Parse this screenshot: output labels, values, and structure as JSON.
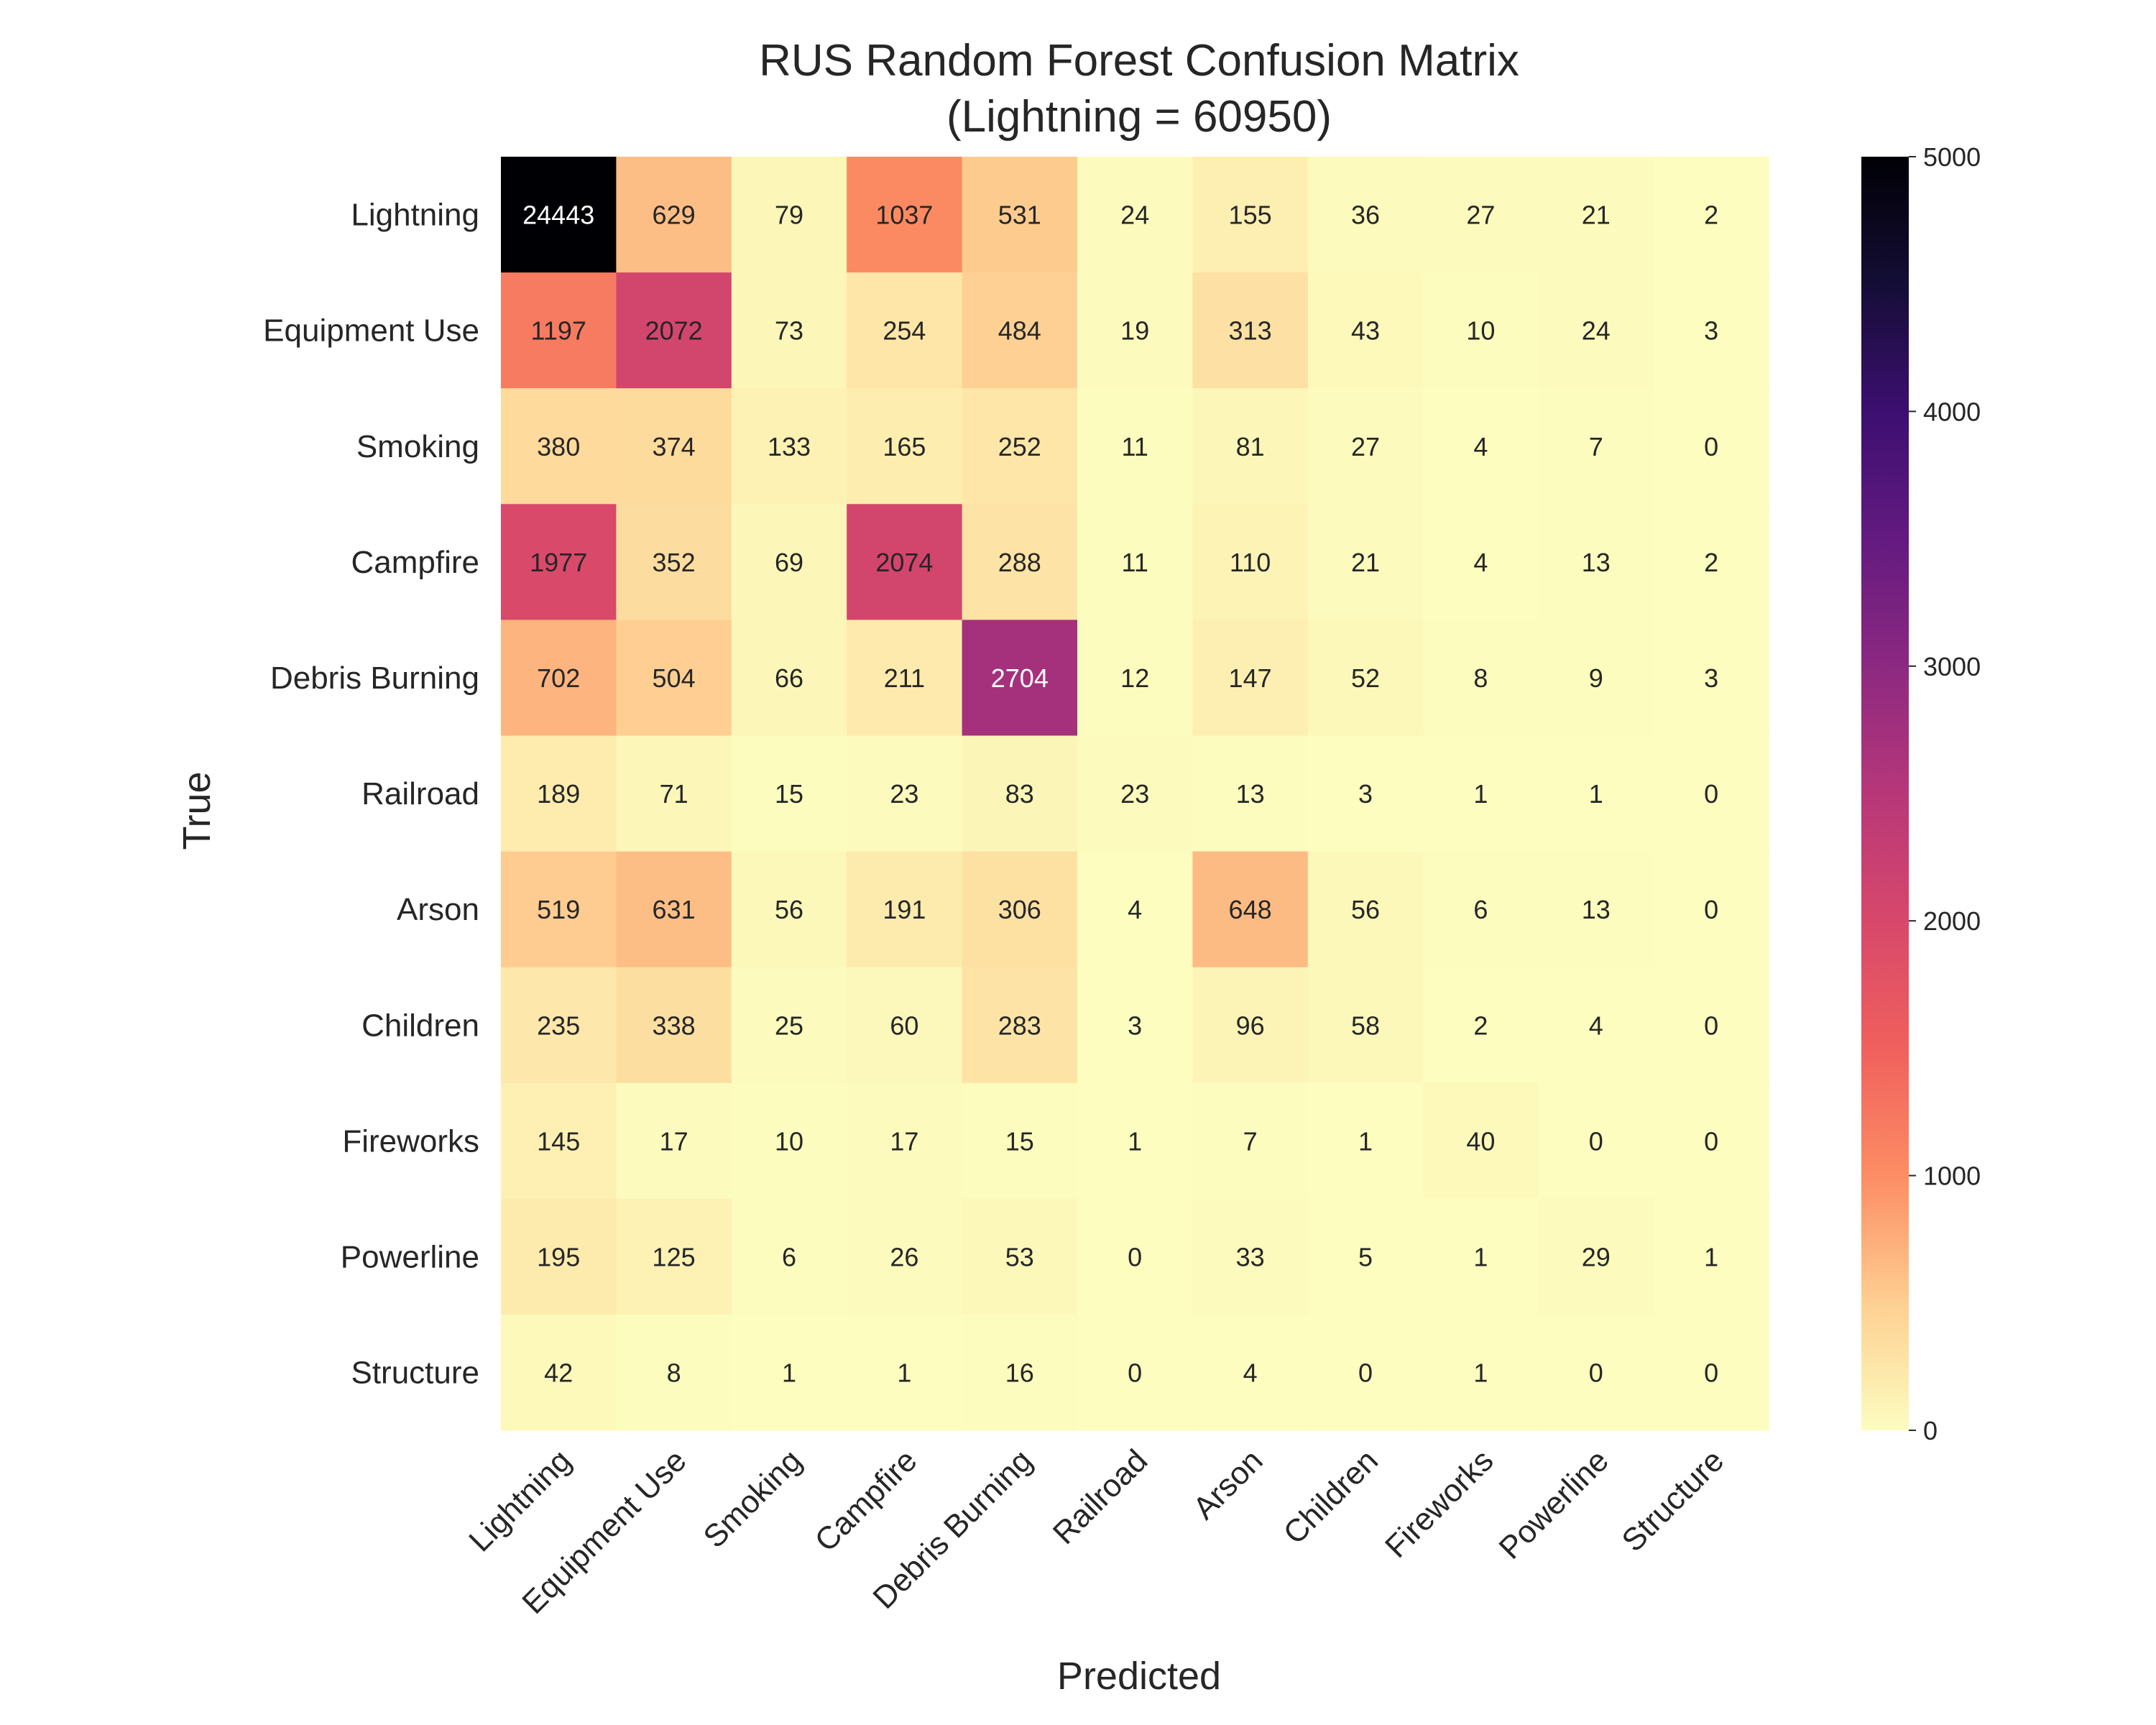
{
  "chart_data": {
    "type": "heatmap",
    "title": "RUS Random Forest Confusion Matrix",
    "subtitle": "(Lightning = 60950)",
    "xlabel": "Predicted",
    "ylabel": "True",
    "x_categories": [
      "Lightning",
      "Equipment Use",
      "Smoking",
      "Campfire",
      "Debris Burning",
      "Railroad",
      "Arson",
      "Children",
      "Fireworks",
      "Powerline",
      "Structure"
    ],
    "y_categories": [
      "Lightning",
      "Equipment Use",
      "Smoking",
      "Campfire",
      "Debris Burning",
      "Railroad",
      "Arson",
      "Children",
      "Fireworks",
      "Powerline",
      "Structure"
    ],
    "values": [
      [
        24443,
        629,
        79,
        1037,
        531,
        24,
        155,
        36,
        27,
        21,
        2
      ],
      [
        1197,
        2072,
        73,
        254,
        484,
        19,
        313,
        43,
        10,
        24,
        3
      ],
      [
        380,
        374,
        133,
        165,
        252,
        11,
        81,
        27,
        4,
        7,
        0
      ],
      [
        1977,
        352,
        69,
        2074,
        288,
        11,
        110,
        21,
        4,
        13,
        2
      ],
      [
        702,
        504,
        66,
        211,
        2704,
        12,
        147,
        52,
        8,
        9,
        3
      ],
      [
        189,
        71,
        15,
        23,
        83,
        23,
        13,
        3,
        1,
        1,
        0
      ],
      [
        519,
        631,
        56,
        191,
        306,
        4,
        648,
        56,
        6,
        13,
        0
      ],
      [
        235,
        338,
        25,
        60,
        283,
        3,
        96,
        58,
        2,
        4,
        0
      ],
      [
        145,
        17,
        10,
        17,
        15,
        1,
        7,
        1,
        40,
        0,
        0
      ],
      [
        195,
        125,
        6,
        26,
        53,
        0,
        33,
        5,
        1,
        29,
        1
      ],
      [
        42,
        8,
        1,
        1,
        16,
        0,
        4,
        0,
        1,
        0,
        0
      ]
    ],
    "colormap": "magma_r",
    "vmin": 0,
    "vmax": 5000,
    "colorbar_ticks": [
      0,
      1000,
      2000,
      3000,
      4000,
      5000
    ]
  }
}
